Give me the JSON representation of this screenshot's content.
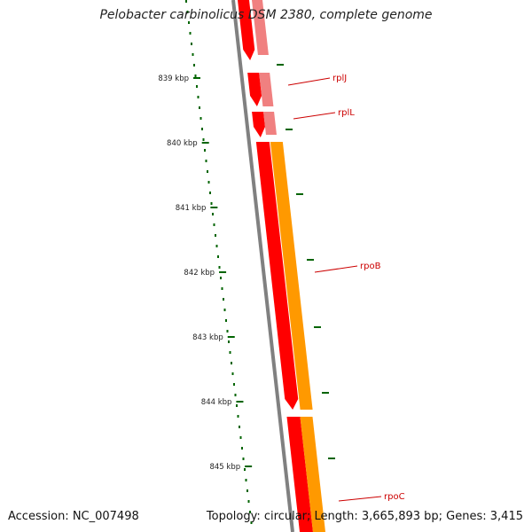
{
  "title": "Pelobacter carbinolicus DSM 2380, complete genome",
  "footer": {
    "accession": "Accession: NC_007498",
    "summary": "Topology: circular; Length: 3,665,893 bp; Genes: 3,415"
  },
  "ruler": {
    "unit": "kbp",
    "ticks": [
      {
        "value": 839,
        "label": "839 kbp"
      },
      {
        "value": 840,
        "label": "840 kbp"
      },
      {
        "value": 841,
        "label": "841 kbp"
      },
      {
        "value": 842,
        "label": "842 kbp"
      },
      {
        "value": 843,
        "label": "843 kbp"
      },
      {
        "value": 844,
        "label": "844 kbp"
      },
      {
        "value": 845,
        "label": "845 kbp"
      }
    ]
  },
  "genes": [
    {
      "name": "rplJ"
    },
    {
      "name": "rplL"
    },
    {
      "name": "rpoB"
    },
    {
      "name": "rpoC"
    }
  ],
  "colors": {
    "cds": "#ff0000",
    "cds_dark": "#c40000",
    "gene_faded": "#f08080",
    "orange": "#ff9900",
    "backbone": "#808080",
    "tick": "#006400",
    "label": "#cc0000"
  }
}
